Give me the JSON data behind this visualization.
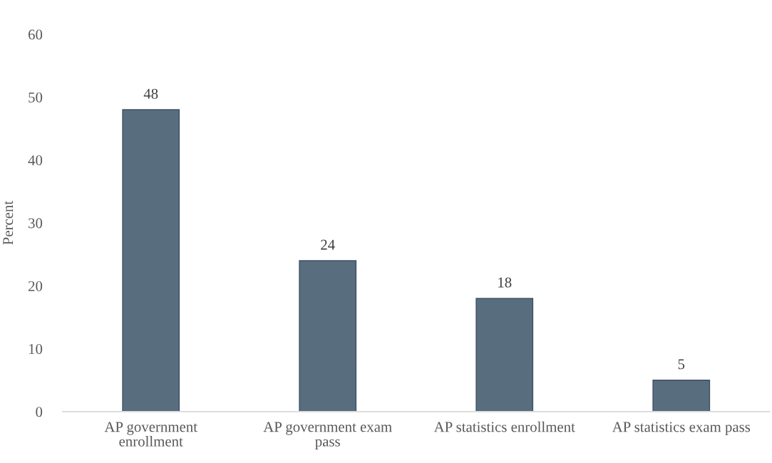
{
  "chart_data": {
    "type": "bar",
    "ylabel": "Percent",
    "categories": [
      "AP government\nenrollment",
      "AP government exam\npass",
      "AP statistics enrollment",
      "AP statistics exam pass"
    ],
    "values": [
      48,
      24,
      18,
      5
    ],
    "color": "#586e7f",
    "ylim": [
      0,
      60
    ],
    "yticks": [
      0,
      10,
      20,
      30,
      40,
      50,
      60
    ],
    "grid": false,
    "data_labels": true
  }
}
